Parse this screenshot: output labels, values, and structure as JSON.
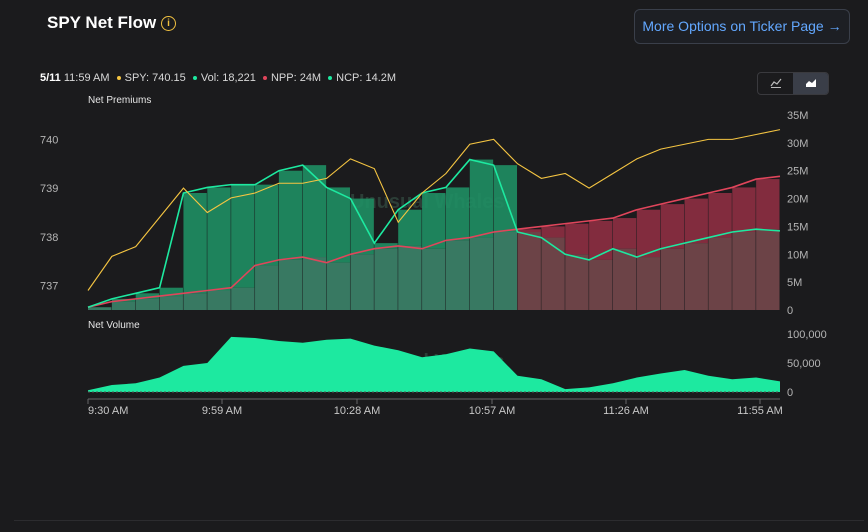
{
  "header": {
    "title": "SPY Net Flow",
    "info_icon": "info-icon",
    "more_button": "More Options on Ticker Page"
  },
  "status": {
    "date": "5/11",
    "time": "11:59 AM",
    "spy": "SPY: 740.15",
    "vol": "Vol: 18,221",
    "npp": "NPP: 24M",
    "ncp": "NCP: 14.2M",
    "colors": {
      "spy": "#f5c542",
      "vol": "#1de9a0",
      "npp": "#e0455b",
      "ncp": "#1de9a0"
    }
  },
  "toggle": {
    "line_icon": "line-chart-icon",
    "area_icon": "area-chart-icon",
    "active": "area"
  },
  "watermark": "Unusual Whales",
  "chart_data": [
    {
      "type": "area",
      "title": "Net Premiums",
      "x": [
        "9:30 AM",
        "9:35 AM",
        "9:40 AM",
        "9:45 AM",
        "9:50 AM",
        "9:55 AM",
        "10:00 AM",
        "10:05 AM",
        "10:10 AM",
        "10:15 AM",
        "10:20 AM",
        "10:25 AM",
        "10:30 AM",
        "10:35 AM",
        "10:40 AM",
        "10:45 AM",
        "10:50 AM",
        "10:55 AM",
        "11:00 AM",
        "11:05 AM",
        "11:10 AM",
        "11:15 AM",
        "11:20 AM",
        "11:25 AM",
        "11:30 AM",
        "11:35 AM",
        "11:40 AM",
        "11:45 AM",
        "11:50 AM",
        "11:55 AM"
      ],
      "x_ticks": [
        "9:30 AM",
        "9:59 AM",
        "10:28 AM",
        "10:57 AM",
        "11:26 AM",
        "11:55 AM"
      ],
      "left_axis": {
        "label": "SPY",
        "ticks": [
          737,
          738,
          739,
          740
        ],
        "ylim": [
          736.5,
          740.5
        ]
      },
      "right_axis": {
        "ticks": [
          "0",
          "5M",
          "10M",
          "15M",
          "20M",
          "25M",
          "30M",
          "35M"
        ],
        "ylim": [
          0,
          35
        ]
      },
      "series": [
        {
          "name": "SPY",
          "color": "#f5c542",
          "axis": "left",
          "values": [
            736.9,
            737.6,
            737.8,
            738.4,
            739.0,
            738.5,
            738.8,
            738.9,
            739.1,
            739.1,
            739.2,
            739.6,
            739.4,
            738.3,
            738.9,
            739.3,
            739.9,
            740.0,
            739.5,
            739.2,
            739.3,
            739.0,
            739.3,
            739.6,
            739.8,
            739.9,
            740.0,
            740.0,
            740.1,
            740.2
          ]
        },
        {
          "name": "NPP",
          "color": "#e0455b",
          "axis": "right",
          "values": [
            0.5,
            1.5,
            2.0,
            2.5,
            3.0,
            3.5,
            4.0,
            8.0,
            9.0,
            9.5,
            8.5,
            10.0,
            11.0,
            11.5,
            11.0,
            12.5,
            13.0,
            14.0,
            14.5,
            15.0,
            15.5,
            16.0,
            16.5,
            18.0,
            19.0,
            20.0,
            21.0,
            22.0,
            23.5,
            24.0
          ]
        },
        {
          "name": "NCP",
          "color": "#1de9a0",
          "axis": "right",
          "values": [
            0.5,
            2.0,
            3.0,
            4.0,
            21.0,
            22.0,
            22.5,
            22.5,
            25.0,
            26.0,
            22.0,
            20.0,
            12.0,
            18.0,
            21.0,
            22.0,
            27.0,
            26.0,
            14.0,
            13.0,
            10.0,
            9.0,
            11.0,
            9.5,
            11.0,
            12.0,
            13.0,
            14.0,
            14.5,
            14.2
          ]
        }
      ]
    },
    {
      "type": "area",
      "title": "Net Volume",
      "x_ticks": [
        "9:30 AM",
        "9:59 AM",
        "10:28 AM",
        "10:57 AM",
        "11:26 AM",
        "11:55 AM"
      ],
      "right_axis": {
        "ticks": [
          "0",
          "50,000",
          "100,000"
        ],
        "ylim": [
          0,
          100000
        ]
      },
      "series": [
        {
          "name": "Net Volume",
          "color": "#1de9a0",
          "values": [
            3000,
            12000,
            15000,
            25000,
            45000,
            50000,
            95000,
            93000,
            88000,
            85000,
            90000,
            92000,
            80000,
            72000,
            60000,
            65000,
            75000,
            70000,
            28000,
            22000,
            5000,
            8000,
            15000,
            25000,
            32000,
            38000,
            28000,
            22000,
            25000,
            18221
          ]
        }
      ]
    }
  ]
}
